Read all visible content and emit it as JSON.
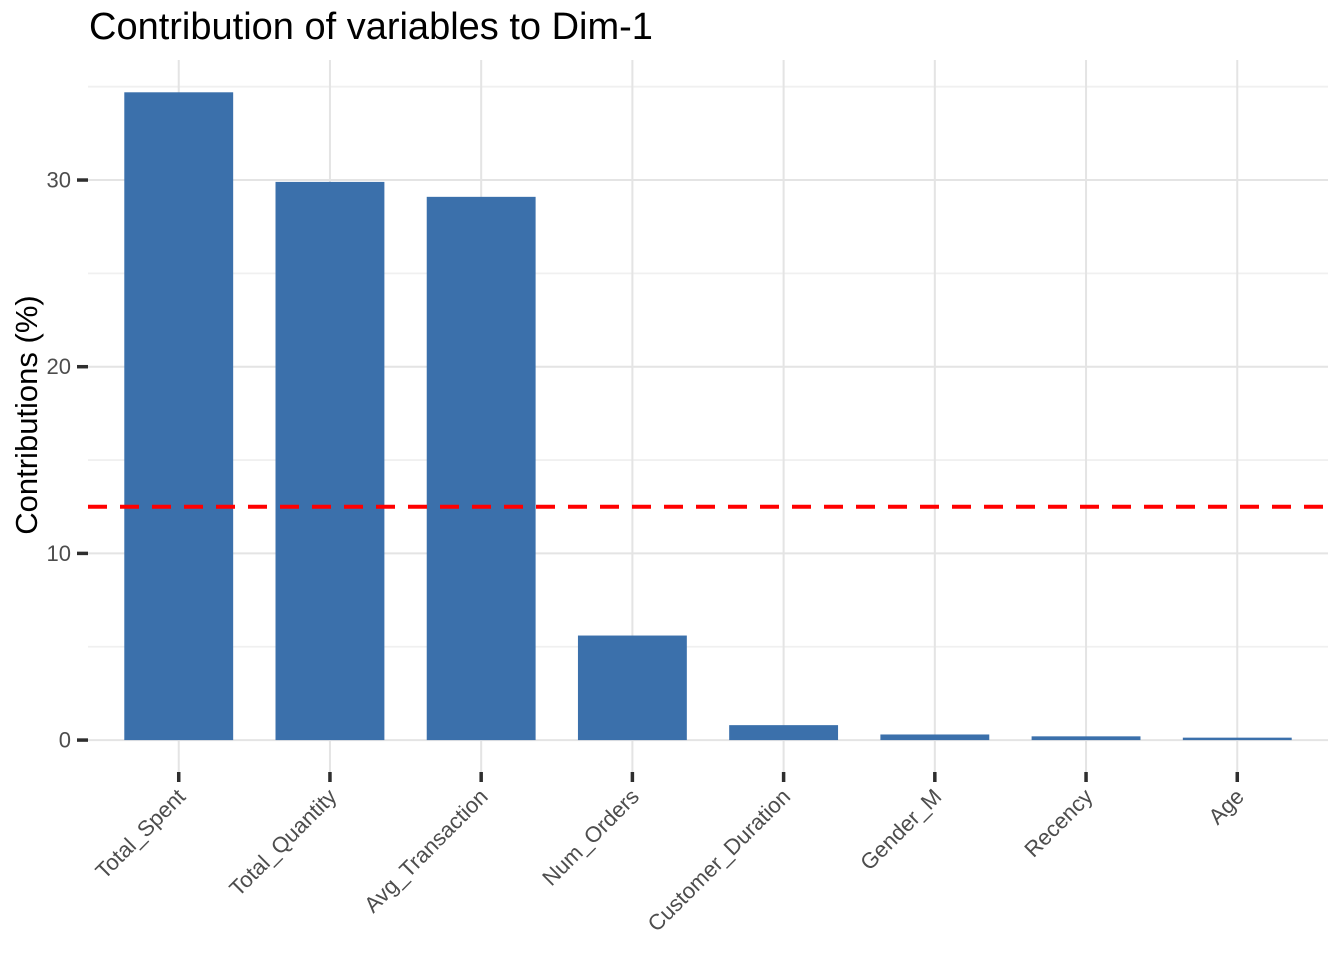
{
  "chart_data": {
    "type": "bar",
    "title": "Contribution of variables to Dim-1",
    "xlabel": "",
    "ylabel": "Contributions (%)",
    "categories": [
      "Total_Spent",
      "Total_Quantity",
      "Avg_Transaction",
      "Num_Orders",
      "Customer_Duration",
      "Gender_M",
      "Recency",
      "Age"
    ],
    "values": [
      34.7,
      29.9,
      29.1,
      5.6,
      0.8,
      0.3,
      0.2,
      0.13
    ],
    "bar_color": "#3B70AB",
    "reference_line": {
      "value": 12.5,
      "color": "#FF0000",
      "style": "dashed"
    },
    "yticks_major": [
      0,
      10,
      20,
      30
    ],
    "yticks_minor": [
      5,
      15,
      25,
      35
    ],
    "y_domain": [
      -1.71,
      36.43
    ],
    "ylim": [
      0,
      34.7
    ],
    "x_label_rotation": 45,
    "grid": true,
    "legend": "none"
  },
  "style": {
    "background": "#FFFFFF",
    "grid_major_color": "#E4E4E4",
    "grid_minor_color": "#F0F0F0",
    "tick_mark_color": "#2E2E2E",
    "tick_label_color": "#4D4D4D",
    "title_color": "#000000",
    "axis_title_color": "#000000"
  }
}
